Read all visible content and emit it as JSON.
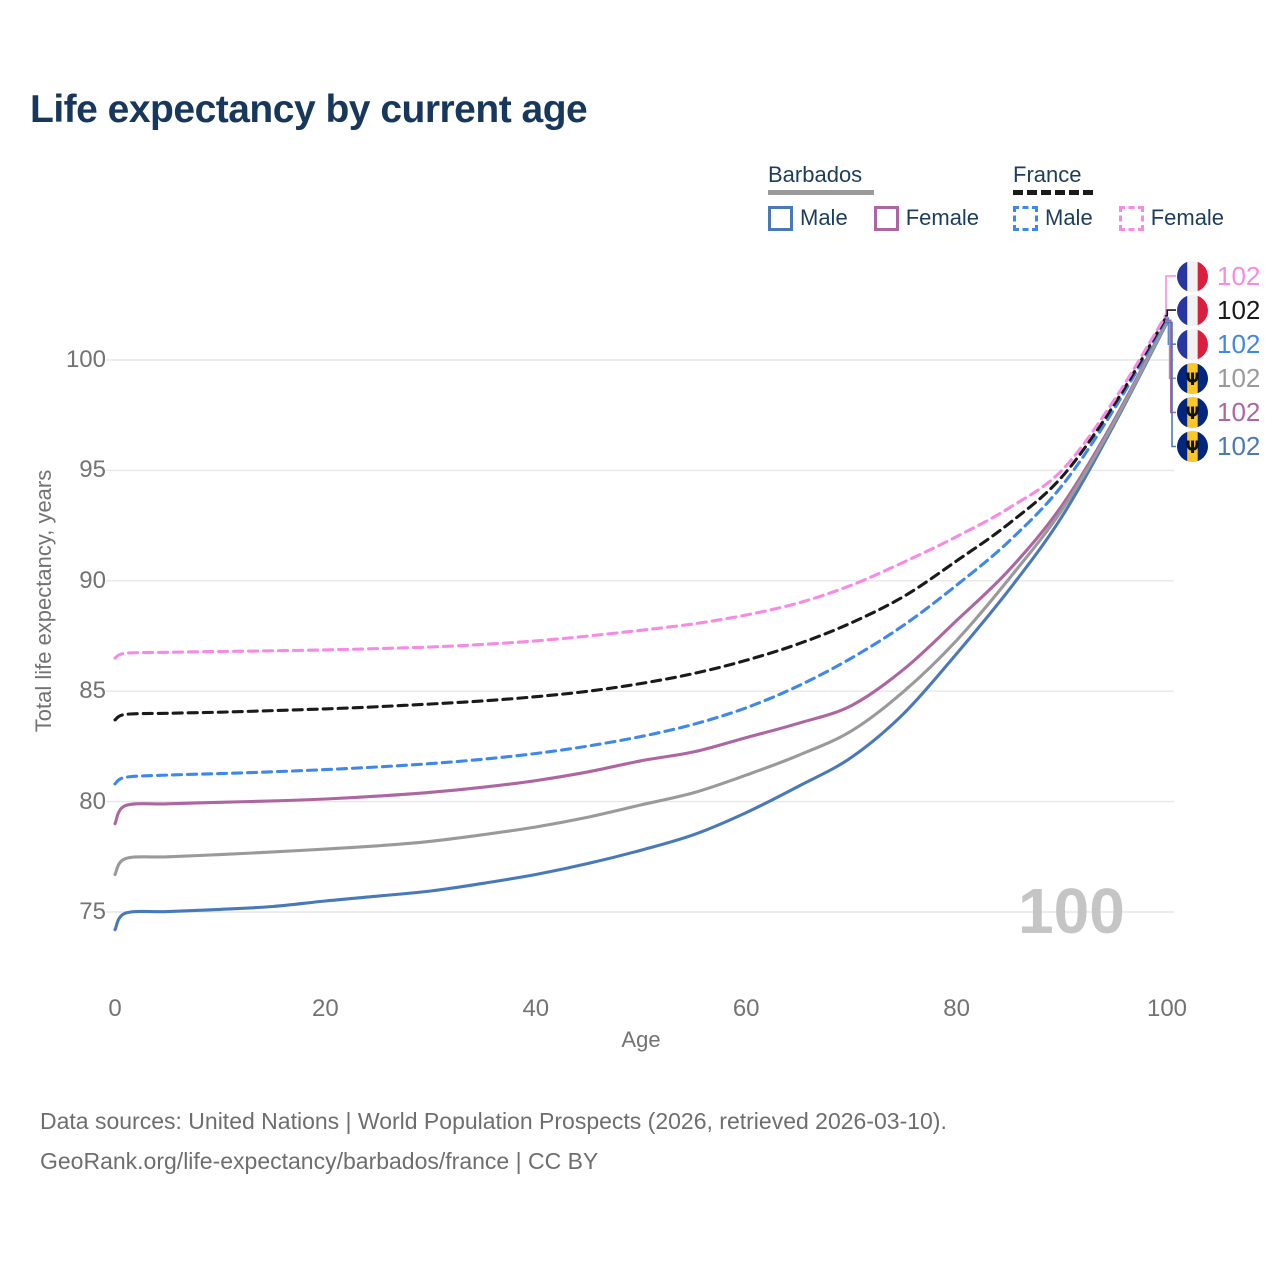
{
  "title": "Life expectancy by current age",
  "watermark_age": "100",
  "legend": {
    "groups": [
      {
        "country": "Barbados",
        "line_style": "solid",
        "total_color": "#9a9a9a",
        "items": [
          {
            "label": "Male",
            "color": "#4a79ba"
          },
          {
            "label": "Female",
            "color": "#ae66a2"
          }
        ]
      },
      {
        "country": "France",
        "line_style": "dashed",
        "total_color": "#1a1a1a",
        "items": [
          {
            "label": "Male",
            "color": "#3f88ea"
          },
          {
            "label": "Female",
            "color": "#f78ae2"
          }
        ]
      }
    ]
  },
  "footer": {
    "sources": "Data sources: United Nations | World Population Prospects (2026, retrieved 2026-03-10).",
    "license": "GeoRank.org/life-expectancy/barbados/france | CC BY"
  },
  "chart_data": {
    "type": "line",
    "title": "Life expectancy by current age",
    "xlabel": "Age",
    "ylabel": "Total life expectancy, years",
    "xlim": [
      0,
      100
    ],
    "ylim": [
      73,
      103
    ],
    "x_ticks": [
      0,
      20,
      40,
      60,
      80,
      100
    ],
    "y_ticks": [
      75,
      80,
      85,
      90,
      95,
      100
    ],
    "grid": "horizontal",
    "legend_position": "top-right",
    "series": [
      {
        "name": "France Female",
        "country": "France",
        "sex": "Female",
        "color": "#f78ae2",
        "dash": true,
        "flag": "france",
        "end_label": "102",
        "points": [
          [
            0,
            86.5
          ],
          [
            1,
            86.72
          ],
          [
            5,
            86.76
          ],
          [
            10,
            86.8
          ],
          [
            15,
            86.83
          ],
          [
            20,
            86.87
          ],
          [
            25,
            86.93
          ],
          [
            30,
            87.0
          ],
          [
            35,
            87.12
          ],
          [
            40,
            87.28
          ],
          [
            45,
            87.5
          ],
          [
            50,
            87.76
          ],
          [
            55,
            88.05
          ],
          [
            60,
            88.45
          ],
          [
            65,
            89.0
          ],
          [
            70,
            89.8
          ],
          [
            75,
            90.85
          ],
          [
            80,
            92.0
          ],
          [
            85,
            93.3
          ],
          [
            90,
            95.0
          ],
          [
            95,
            98.2
          ],
          [
            100,
            102.1
          ]
        ]
      },
      {
        "name": "France Both sexes",
        "country": "France",
        "sex": "Both",
        "color": "#1a1a1a",
        "dash": true,
        "flag": "france",
        "end_label": "102",
        "points": [
          [
            0,
            83.7
          ],
          [
            1,
            83.95
          ],
          [
            5,
            84.0
          ],
          [
            10,
            84.05
          ],
          [
            15,
            84.12
          ],
          [
            20,
            84.2
          ],
          [
            25,
            84.3
          ],
          [
            30,
            84.42
          ],
          [
            35,
            84.56
          ],
          [
            40,
            84.75
          ],
          [
            45,
            85.0
          ],
          [
            50,
            85.35
          ],
          [
            55,
            85.8
          ],
          [
            60,
            86.4
          ],
          [
            65,
            87.15
          ],
          [
            70,
            88.1
          ],
          [
            75,
            89.3
          ],
          [
            80,
            90.9
          ],
          [
            85,
            92.6
          ],
          [
            90,
            94.7
          ],
          [
            95,
            98.0
          ],
          [
            100,
            102.0
          ]
        ]
      },
      {
        "name": "France Male",
        "country": "France",
        "sex": "Male",
        "color": "#3f88ea",
        "dash": true,
        "flag": "france",
        "end_label": "102",
        "points": [
          [
            0,
            80.8
          ],
          [
            1,
            81.1
          ],
          [
            5,
            81.2
          ],
          [
            10,
            81.27
          ],
          [
            15,
            81.35
          ],
          [
            20,
            81.45
          ],
          [
            25,
            81.57
          ],
          [
            30,
            81.72
          ],
          [
            35,
            81.92
          ],
          [
            40,
            82.18
          ],
          [
            45,
            82.52
          ],
          [
            50,
            82.95
          ],
          [
            55,
            83.5
          ],
          [
            60,
            84.25
          ],
          [
            65,
            85.25
          ],
          [
            70,
            86.5
          ],
          [
            75,
            88.0
          ],
          [
            80,
            89.8
          ],
          [
            85,
            91.8
          ],
          [
            90,
            94.3
          ],
          [
            95,
            97.8
          ],
          [
            100,
            101.9
          ]
        ]
      },
      {
        "name": "Barbados Both sexes",
        "country": "Barbados",
        "sex": "Both",
        "color": "#9a9a9a",
        "dash": false,
        "flag": "barbados",
        "end_label": "102",
        "points": [
          [
            0,
            76.7
          ],
          [
            1,
            77.42
          ],
          [
            5,
            77.5
          ],
          [
            10,
            77.6
          ],
          [
            15,
            77.72
          ],
          [
            20,
            77.85
          ],
          [
            25,
            78.0
          ],
          [
            30,
            78.2
          ],
          [
            35,
            78.5
          ],
          [
            40,
            78.85
          ],
          [
            45,
            79.3
          ],
          [
            50,
            79.85
          ],
          [
            55,
            80.4
          ],
          [
            60,
            81.2
          ],
          [
            65,
            82.1
          ],
          [
            70,
            83.2
          ],
          [
            75,
            85.0
          ],
          [
            80,
            87.3
          ],
          [
            85,
            90.1
          ],
          [
            90,
            93.2
          ],
          [
            95,
            97.2
          ],
          [
            100,
            101.75
          ]
        ]
      },
      {
        "name": "Barbados Female",
        "country": "Barbados",
        "sex": "Female",
        "color": "#ae66a2",
        "dash": false,
        "flag": "barbados",
        "end_label": "102",
        "points": [
          [
            0,
            79.0
          ],
          [
            1,
            79.82
          ],
          [
            5,
            79.9
          ],
          [
            10,
            79.97
          ],
          [
            15,
            80.03
          ],
          [
            20,
            80.12
          ],
          [
            25,
            80.25
          ],
          [
            30,
            80.42
          ],
          [
            35,
            80.65
          ],
          [
            40,
            80.95
          ],
          [
            45,
            81.35
          ],
          [
            50,
            81.85
          ],
          [
            55,
            82.25
          ],
          [
            60,
            82.9
          ],
          [
            65,
            83.55
          ],
          [
            70,
            84.35
          ],
          [
            75,
            86.0
          ],
          [
            80,
            88.2
          ],
          [
            85,
            90.5
          ],
          [
            90,
            93.4
          ],
          [
            95,
            97.3
          ],
          [
            100,
            101.8
          ]
        ]
      },
      {
        "name": "Barbados Male",
        "country": "Barbados",
        "sex": "Male",
        "color": "#4a79ba",
        "dash": false,
        "flag": "barbados",
        "end_label": "102",
        "points": [
          [
            0,
            74.2
          ],
          [
            1,
            74.95
          ],
          [
            5,
            75.02
          ],
          [
            10,
            75.12
          ],
          [
            15,
            75.25
          ],
          [
            20,
            75.5
          ],
          [
            25,
            75.72
          ],
          [
            30,
            75.95
          ],
          [
            35,
            76.3
          ],
          [
            40,
            76.7
          ],
          [
            45,
            77.2
          ],
          [
            50,
            77.8
          ],
          [
            55,
            78.5
          ],
          [
            60,
            79.5
          ],
          [
            65,
            80.7
          ],
          [
            70,
            82.0
          ],
          [
            75,
            84.0
          ],
          [
            80,
            86.7
          ],
          [
            85,
            89.6
          ],
          [
            90,
            92.9
          ],
          [
            95,
            97.1
          ],
          [
            100,
            101.7
          ]
        ]
      }
    ],
    "flag_colors": {
      "france": [
        "#28369e",
        "#f2f2f2",
        "#da1f3e"
      ],
      "barbados": [
        "#00267f",
        "#fdc726",
        "#00267f"
      ],
      "barbados_trident": "#111111"
    }
  }
}
